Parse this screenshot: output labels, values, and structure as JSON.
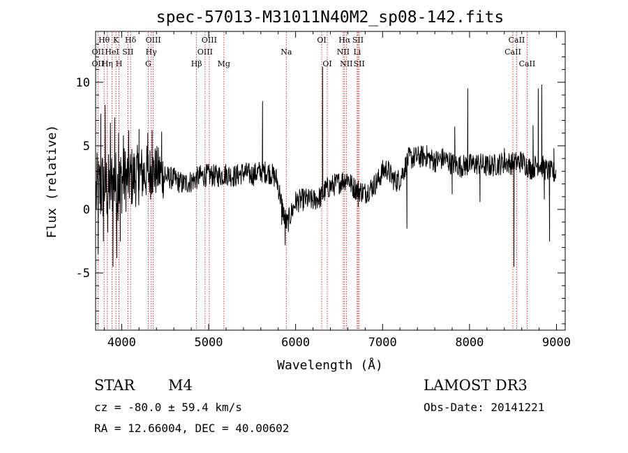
{
  "chart_data": {
    "type": "line",
    "title": "spec-57013-M31011N40M2_sp08-142.fits",
    "xlabel": "Wavelength (Å)",
    "ylabel": "Flux (relative)",
    "xlim": [
      3700,
      9100
    ],
    "ylim": [
      -9.5,
      14
    ],
    "xticks": [
      4000,
      5000,
      6000,
      7000,
      8000,
      9000
    ],
    "yticks": [
      -5,
      0,
      5,
      10
    ],
    "line_color": "#000000",
    "marker_color": "#cc0000",
    "spectral_lines": [
      {
        "label": "Hθ",
        "wavelength": 3798,
        "row": 0
      },
      {
        "label": "K",
        "wavelength": 3934,
        "row": 0
      },
      {
        "label": "Hδ",
        "wavelength": 4102,
        "row": 0
      },
      {
        "label": "OIII",
        "wavelength": 4363,
        "row": 0
      },
      {
        "label": "OIII",
        "wavelength": 5007,
        "row": 0
      },
      {
        "label": "OI",
        "wavelength": 6300,
        "row": 0
      },
      {
        "label": "Hα",
        "wavelength": 6563,
        "row": 0
      },
      {
        "label": "SII",
        "wavelength": 6717,
        "row": 0
      },
      {
        "label": "CaII",
        "wavelength": 8542,
        "row": 0
      },
      {
        "label": "OII",
        "wavelength": 3727,
        "row": 1
      },
      {
        "label": "HeI",
        "wavelength": 3889,
        "row": 1
      },
      {
        "label": "SII",
        "wavelength": 4072,
        "row": 1
      },
      {
        "label": "Hγ",
        "wavelength": 4340,
        "row": 1
      },
      {
        "label": "OIII",
        "wavelength": 4959,
        "row": 1
      },
      {
        "label": "Na",
        "wavelength": 5893,
        "row": 1
      },
      {
        "label": "NII",
        "wavelength": 6548,
        "row": 1
      },
      {
        "label": "Li",
        "wavelength": 6708,
        "row": 1
      },
      {
        "label": "CaII",
        "wavelength": 8498,
        "row": 1
      },
      {
        "label": "OII",
        "wavelength": 3727,
        "row": 2
      },
      {
        "label": "Hη",
        "wavelength": 3835,
        "row": 2
      },
      {
        "label": "H",
        "wavelength": 3969,
        "row": 2
      },
      {
        "label": "G",
        "wavelength": 4305,
        "row": 2
      },
      {
        "label": "Hβ",
        "wavelength": 4861,
        "row": 2
      },
      {
        "label": "Mg",
        "wavelength": 5175,
        "row": 2
      },
      {
        "label": "OI",
        "wavelength": 6364,
        "row": 2
      },
      {
        "label": "NII",
        "wavelength": 6583,
        "row": 2
      },
      {
        "label": "SII",
        "wavelength": 6731,
        "row": 2
      },
      {
        "label": "CaII",
        "wavelength": 8662,
        "row": 2
      }
    ],
    "spectrum_nodes": [
      [
        3700,
        1.2
      ],
      [
        3750,
        1.5
      ],
      [
        3800,
        2.0
      ],
      [
        3850,
        1.5
      ],
      [
        3900,
        2.2
      ],
      [
        3950,
        1.8
      ],
      [
        4000,
        2.3
      ],
      [
        4100,
        2.5
      ],
      [
        4200,
        2.7
      ],
      [
        4300,
        2.9
      ],
      [
        4400,
        3.0
      ],
      [
        4500,
        2.6
      ],
      [
        4600,
        2.4
      ],
      [
        4700,
        2.0
      ],
      [
        4800,
        2.2
      ],
      [
        4900,
        2.6
      ],
      [
        5000,
        2.7
      ],
      [
        5100,
        2.6
      ],
      [
        5200,
        2.8
      ],
      [
        5300,
        2.6
      ],
      [
        5400,
        2.9
      ],
      [
        5500,
        2.7
      ],
      [
        5600,
        3.0
      ],
      [
        5700,
        2.9
      ],
      [
        5780,
        2.4
      ],
      [
        5820,
        1.2
      ],
      [
        5850,
        0.0
      ],
      [
        5900,
        -1.2
      ],
      [
        5950,
        -0.3
      ],
      [
        6000,
        0.6
      ],
      [
        6100,
        0.8
      ],
      [
        6200,
        0.7
      ],
      [
        6300,
        1.0
      ],
      [
        6350,
        1.6
      ],
      [
        6400,
        1.8
      ],
      [
        6500,
        2.1
      ],
      [
        6600,
        2.5
      ],
      [
        6650,
        1.8
      ],
      [
        6700,
        1.6
      ],
      [
        6800,
        1.3
      ],
      [
        6900,
        1.9
      ],
      [
        6950,
        2.3
      ],
      [
        7000,
        3.0
      ],
      [
        7050,
        3.2
      ],
      [
        7100,
        2.6
      ],
      [
        7150,
        2.2
      ],
      [
        7200,
        2.4
      ],
      [
        7250,
        3.2
      ],
      [
        7300,
        4.0
      ],
      [
        7400,
        4.1
      ],
      [
        7500,
        4.2
      ],
      [
        7600,
        3.8
      ],
      [
        7700,
        4.0
      ],
      [
        7800,
        3.6
      ],
      [
        7900,
        3.4
      ],
      [
        8000,
        3.5
      ],
      [
        8100,
        3.6
      ],
      [
        8200,
        3.4
      ],
      [
        8300,
        3.5
      ],
      [
        8400,
        3.7
      ],
      [
        8500,
        3.6
      ],
      [
        8600,
        3.8
      ],
      [
        8700,
        3.2
      ],
      [
        8800,
        3.6
      ],
      [
        8900,
        3.0
      ],
      [
        9000,
        2.8
      ]
    ],
    "spectrum_spikes": [
      [
        3730,
        -3.5
      ],
      [
        3760,
        7.5
      ],
      [
        3790,
        -2.5
      ],
      [
        3810,
        8.2
      ],
      [
        3840,
        -1.8
      ],
      [
        3870,
        6.8
      ],
      [
        3900,
        -4.5
      ],
      [
        3920,
        7.2
      ],
      [
        3945,
        -3.8
      ],
      [
        3965,
        6.0
      ],
      [
        3985,
        -2.5
      ],
      [
        4020,
        5.8
      ],
      [
        4080,
        6.2
      ],
      [
        4200,
        6.3
      ],
      [
        4300,
        6.0
      ],
      [
        4350,
        6.2
      ],
      [
        4460,
        6.1
      ],
      [
        5620,
        8.5
      ],
      [
        5840,
        -1.2
      ],
      [
        5880,
        -2.8
      ],
      [
        6310,
        11.2
      ],
      [
        6380,
        1.0
      ],
      [
        6720,
        0.2
      ],
      [
        7280,
        -1.5
      ],
      [
        7800,
        1.2
      ],
      [
        7830,
        6.5
      ],
      [
        7980,
        9.5
      ],
      [
        8120,
        0.6
      ],
      [
        8400,
        4.8
      ],
      [
        8510,
        -4.5
      ],
      [
        8730,
        6.6
      ],
      [
        8790,
        9.5
      ],
      [
        8830,
        9.8
      ],
      [
        8860,
        0.8
      ],
      [
        8920,
        -2.5
      ],
      [
        8970,
        4.8
      ]
    ],
    "noise_amplitude_blue": 2.6,
    "noise_amplitude_red": 0.9
  },
  "info": {
    "object_class": "STAR",
    "subclass": "M4",
    "survey": "LAMOST DR3",
    "redshift_text": "cz = -80.0 ± 59.4 km/s",
    "obs_date_text": "Obs-Date: 20141221",
    "coords_text": "RA =  12.66004, DEC =  40.00602"
  }
}
